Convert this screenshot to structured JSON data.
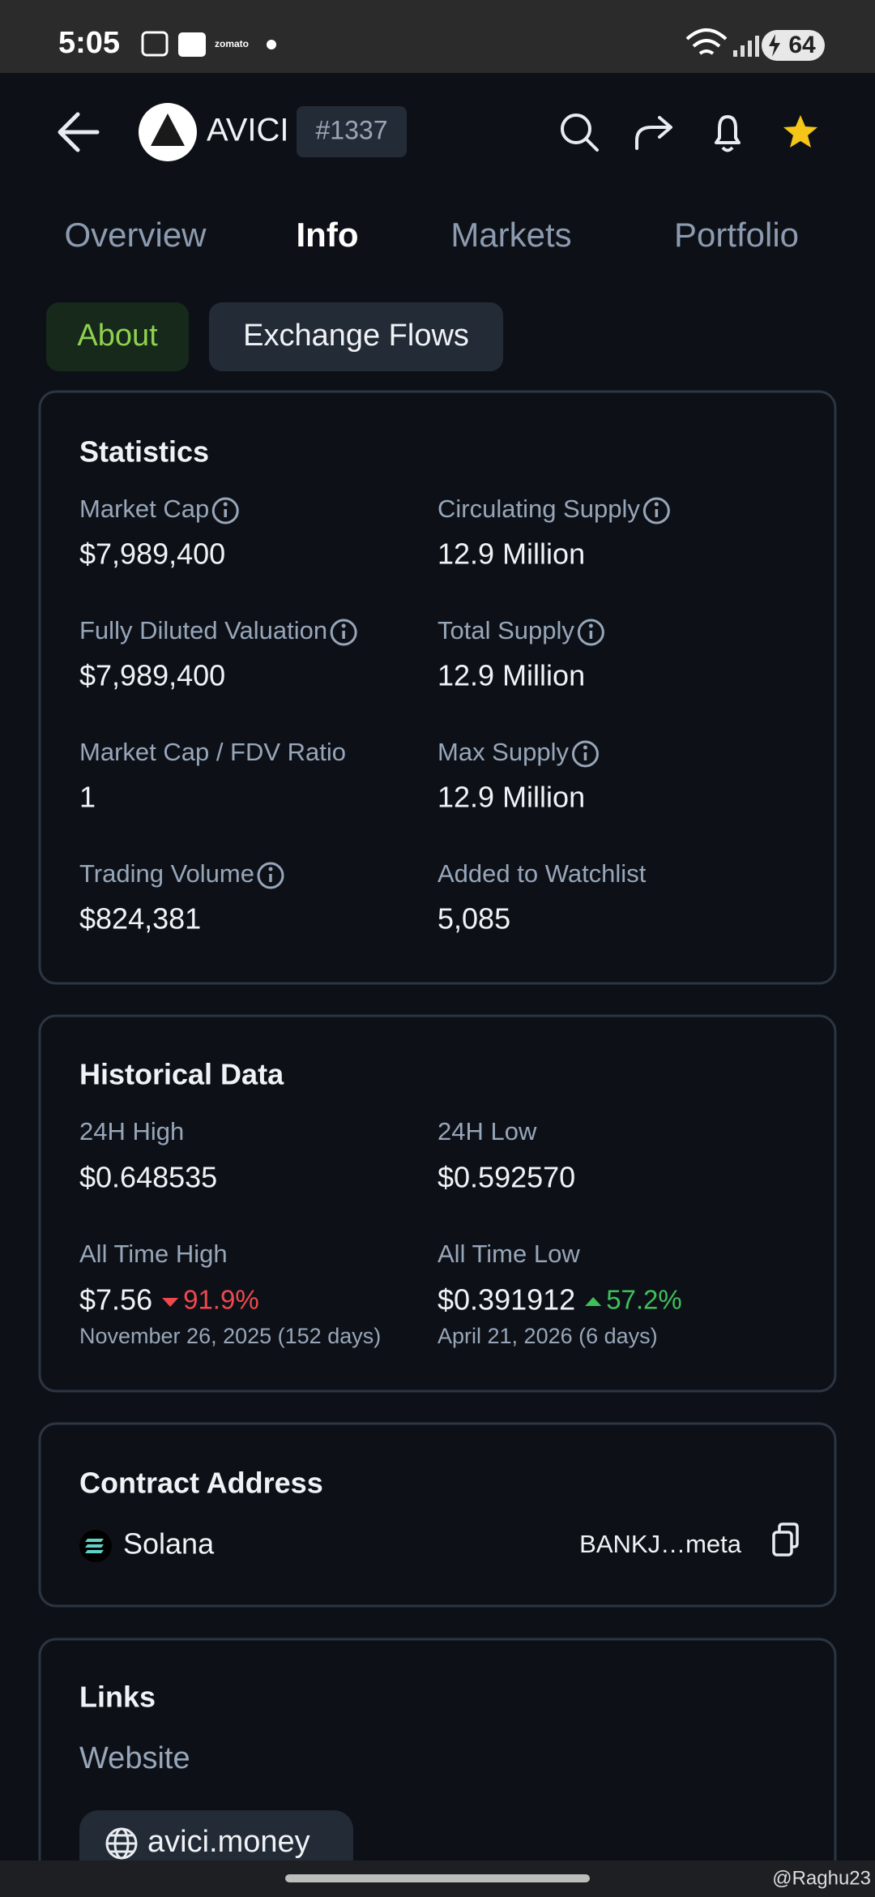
{
  "status_bar": {
    "time": "5:05",
    "app_label": "zomato",
    "battery": "64"
  },
  "header": {
    "name": "AVICI",
    "rank": "#1337"
  },
  "tabs": [
    "Overview",
    "Info",
    "Markets",
    "Portfolio"
  ],
  "sub_tabs": [
    "About",
    "Exchange Flows"
  ],
  "statistics": {
    "title": "Statistics",
    "items": [
      {
        "label": "Market Cap",
        "value": "$7,989,400"
      },
      {
        "label": "Circulating Supply",
        "value": "12.9 Million"
      },
      {
        "label": "Fully Diluted Valuation",
        "value": "$7,989,400"
      },
      {
        "label": "Total Supply",
        "value": "12.9 Million"
      },
      {
        "label": "Market Cap / FDV Ratio",
        "value": "1"
      },
      {
        "label": "Max Supply",
        "value": "12.9 Million"
      },
      {
        "label": "Trading Volume",
        "value": "$824,381"
      },
      {
        "label": "Added to Watchlist",
        "value": "5,085"
      }
    ]
  },
  "historical": {
    "title": "Historical Data",
    "items": [
      {
        "label": "24H High",
        "value": "$0.648535"
      },
      {
        "label": "24H Low",
        "value": "$0.592570"
      },
      {
        "label": "All Time High",
        "value": "$7.56",
        "change": "91.9%",
        "date": "November 26, 2025 (152 days)"
      },
      {
        "label": "All Time Low",
        "value": "$0.391912",
        "change": "57.2%",
        "date": "April 21, 2026 (6 days)"
      }
    ]
  },
  "contract": {
    "title": "Contract Address",
    "chain": "Solana",
    "address": "BANKJ…meta"
  },
  "links": {
    "title": "Links",
    "website_label": "Website",
    "website": "avici.money"
  },
  "watermark": "@Raghu23"
}
